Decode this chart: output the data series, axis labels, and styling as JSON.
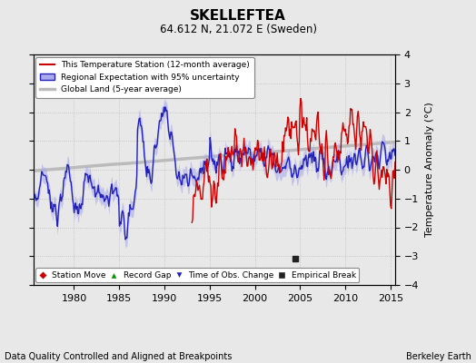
{
  "title": "SKELLEFTEA",
  "subtitle": "64.612 N, 21.072 E (Sweden)",
  "xlabel_bottom": "Data Quality Controlled and Aligned at Breakpoints",
  "xlabel_right": "Berkeley Earth",
  "ylabel": "Temperature Anomaly (°C)",
  "xlim": [
    1975.5,
    2015.5
  ],
  "ylim": [
    -4,
    4
  ],
  "yticks": [
    -4,
    -3,
    -2,
    -1,
    0,
    1,
    2,
    3,
    4
  ],
  "xticks": [
    1980,
    1985,
    1990,
    1995,
    2000,
    2005,
    2010,
    2015
  ],
  "station_start": 1993.0,
  "legend_items": [
    {
      "label": "This Temperature Station (12-month average)",
      "color": "#cc0000",
      "lw": 1.5
    },
    {
      "label": "Regional Expectation with 95% uncertainty",
      "color": "#3333cc",
      "lw": 1.5
    },
    {
      "label": "Global Land (5-year average)",
      "color": "#aaaaaa",
      "lw": 2.5
    }
  ],
  "marker_items": [
    {
      "label": "Station Move",
      "marker": "D",
      "color": "#cc0000"
    },
    {
      "label": "Record Gap",
      "marker": "^",
      "color": "#009900"
    },
    {
      "label": "Time of Obs. Change",
      "marker": "v",
      "color": "#0000cc"
    },
    {
      "label": "Empirical Break",
      "marker": "s",
      "color": "#333333"
    }
  ],
  "empirical_break_x": 2004.5,
  "empirical_break_y": -3.1,
  "bg_color": "#e8e8e8",
  "plot_bg_color": "#e8e8e8",
  "grid_color": "#cccccc"
}
